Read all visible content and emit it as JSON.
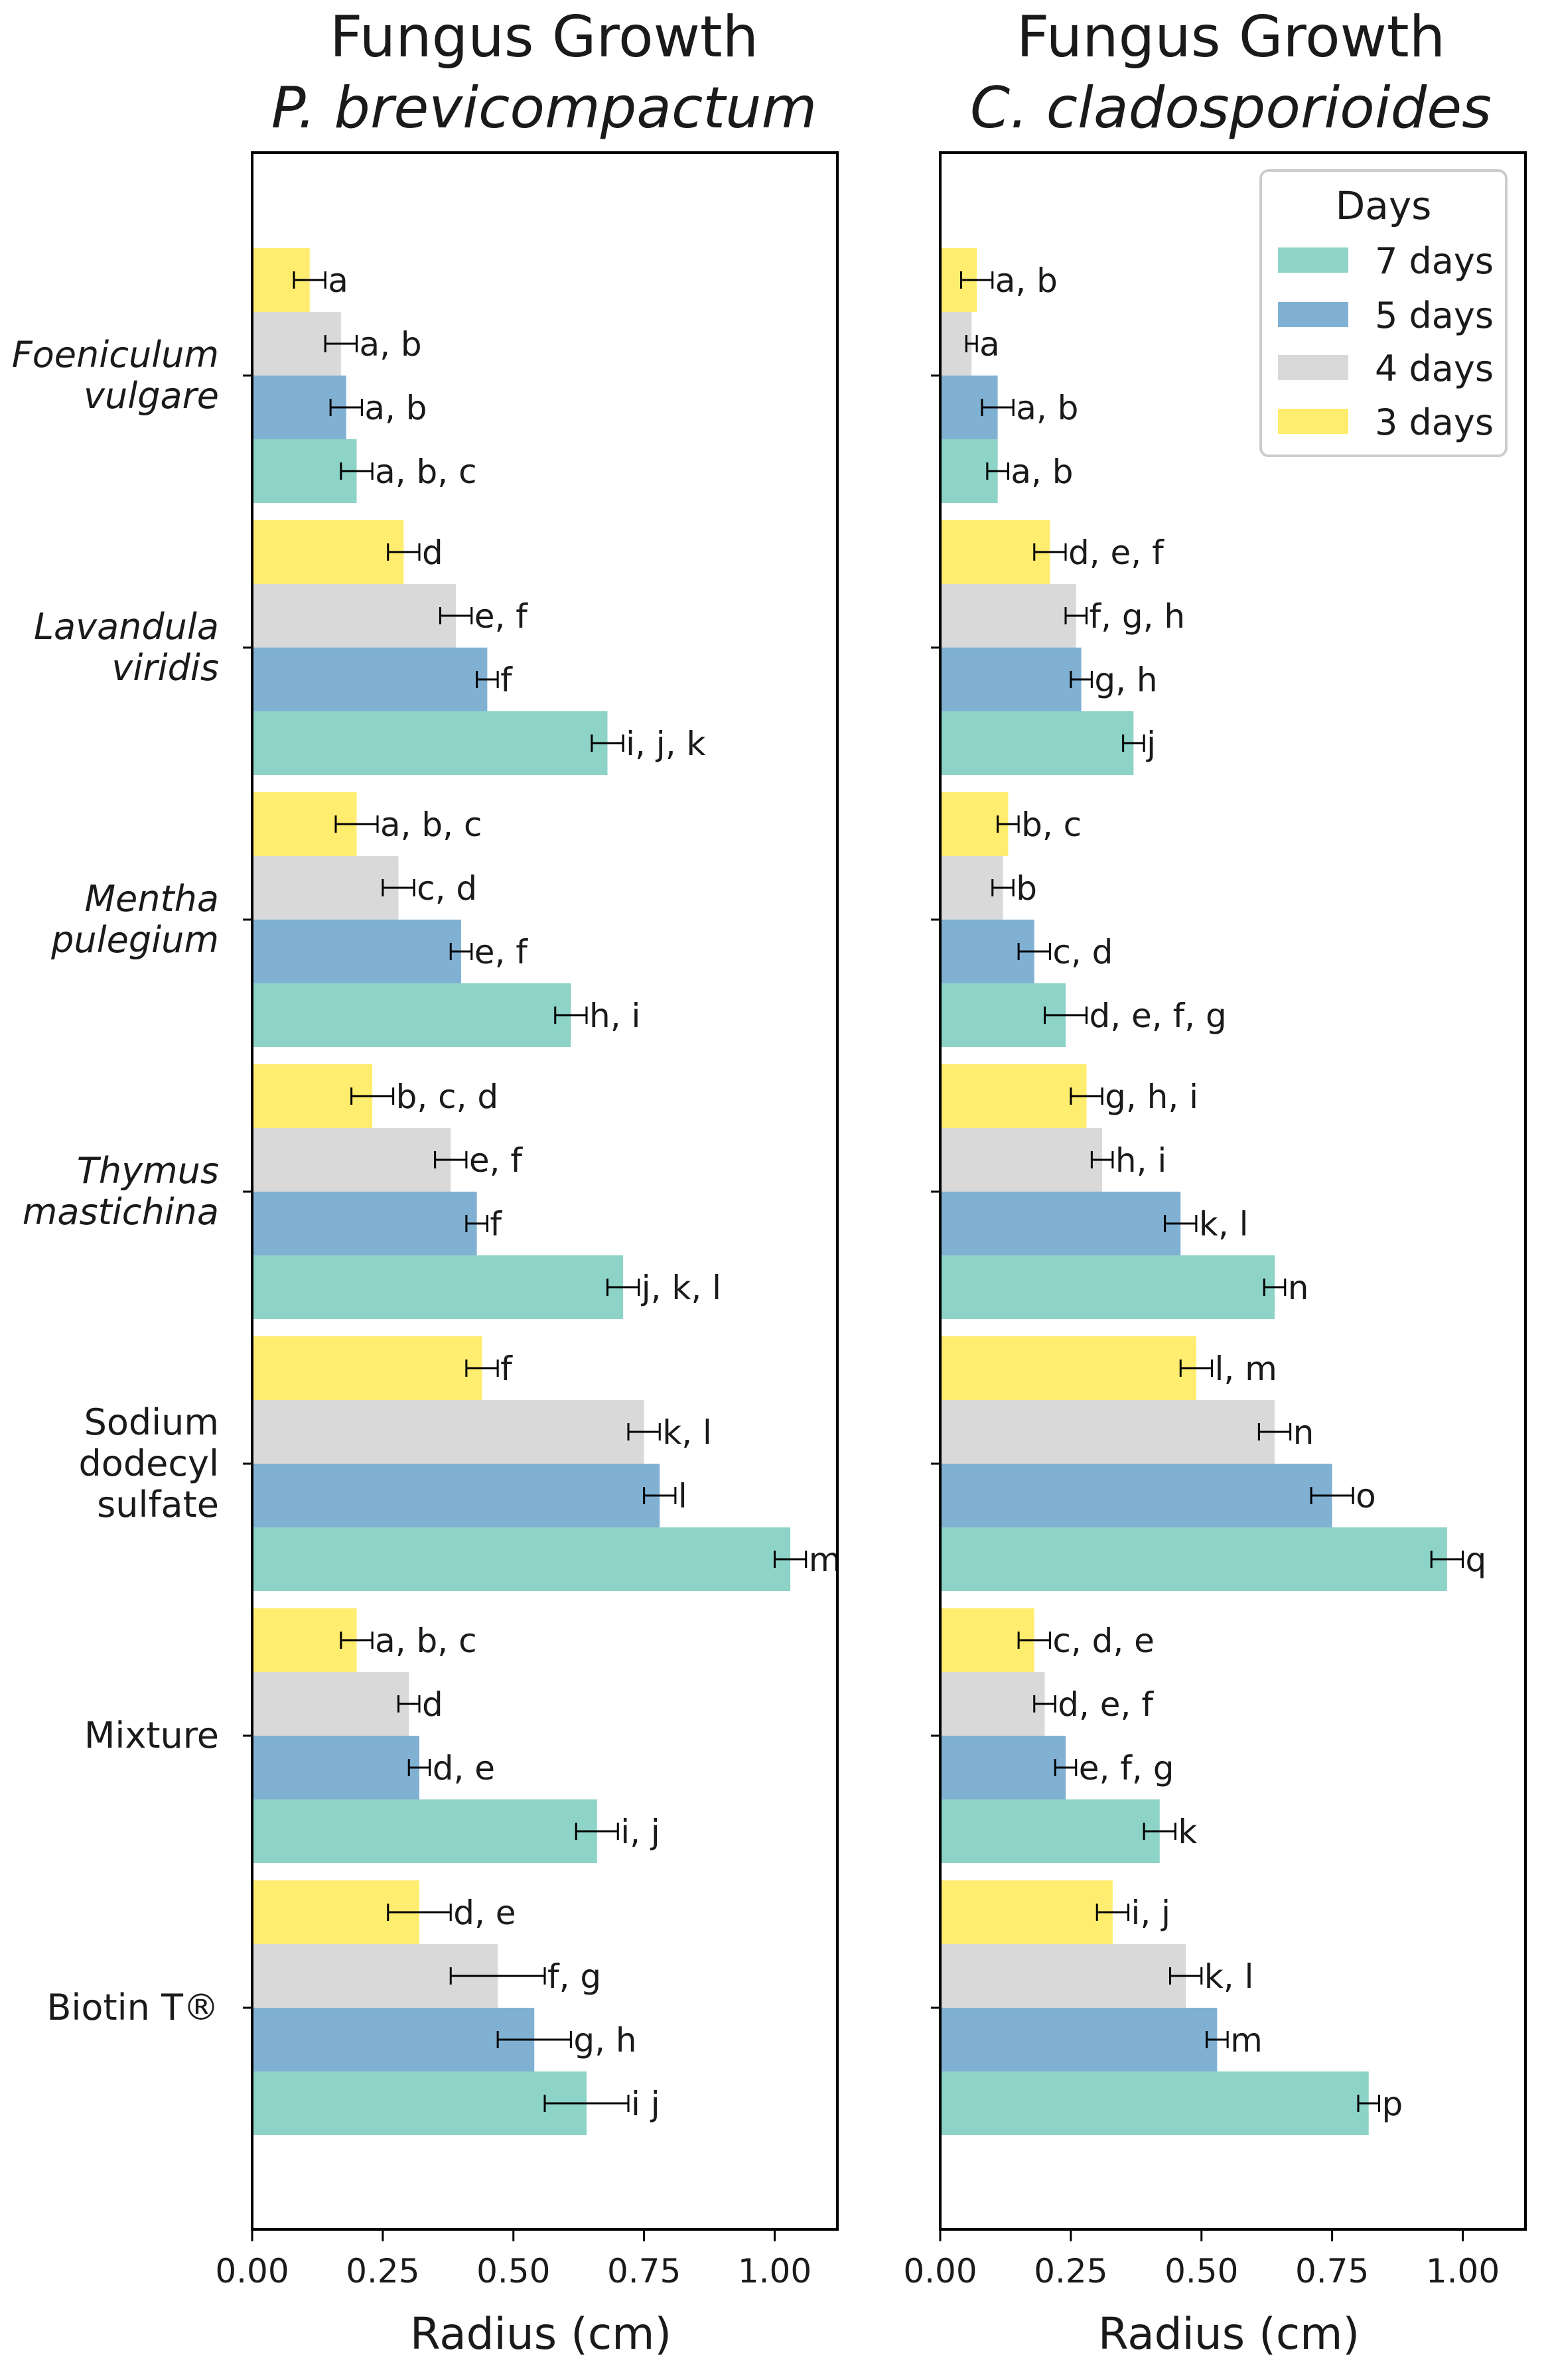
{
  "chart_data": [
    {
      "type": "bar",
      "orientation": "horizontal",
      "title": [
        "Fungus Growth",
        "P. brevicompactum"
      ],
      "xlabel": "Radius (cm)",
      "xlim": [
        0,
        1.12
      ],
      "xticks": [
        "0.00",
        "0.25",
        "0.50",
        "0.75",
        "1.00"
      ],
      "categories": [
        [
          "Foeniculum",
          "vulgare"
        ],
        [
          "Lavandula",
          "viridis"
        ],
        [
          "Mentha",
          "pulegium"
        ],
        [
          "Thymus",
          "mastichina"
        ],
        [
          "Sodium",
          "dodecyl",
          "sulfate"
        ],
        [
          "Mixture"
        ],
        [
          "Biotin T®"
        ]
      ],
      "italic_categories": [
        true,
        true,
        true,
        true,
        false,
        false,
        false
      ],
      "series": [
        {
          "name": "3 days",
          "values": [
            0.11,
            0.29,
            0.2,
            0.23,
            0.44,
            0.2,
            0.32
          ],
          "errors": [
            0.03,
            0.03,
            0.04,
            0.04,
            0.03,
            0.03,
            0.06
          ],
          "labels": [
            "a",
            "d",
            "a, b, c",
            "b, c, d",
            "f",
            "a, b, c",
            "d, e"
          ]
        },
        {
          "name": "4 days",
          "values": [
            0.17,
            0.39,
            0.28,
            0.38,
            0.75,
            0.3,
            0.47
          ],
          "errors": [
            0.03,
            0.03,
            0.03,
            0.03,
            0.03,
            0.02,
            0.09
          ],
          "labels": [
            "a, b",
            "e, f",
            "c, d",
            "e, f",
            "k, l",
            "d",
            "f, g"
          ]
        },
        {
          "name": "5 days",
          "values": [
            0.18,
            0.45,
            0.4,
            0.43,
            0.78,
            0.32,
            0.54
          ],
          "errors": [
            0.03,
            0.02,
            0.02,
            0.02,
            0.03,
            0.02,
            0.07
          ],
          "labels": [
            "a, b",
            "f",
            "e, f",
            "f",
            "l",
            "d, e",
            "g, h"
          ]
        },
        {
          "name": "7 days",
          "values": [
            0.2,
            0.68,
            0.61,
            0.71,
            1.03,
            0.66,
            0.64
          ],
          "errors": [
            0.03,
            0.03,
            0.03,
            0.03,
            0.03,
            0.04,
            0.08
          ],
          "labels": [
            "a, b, c",
            "i, j, k",
            "h, i",
            "j, k, l",
            "m",
            "i, j",
            "i j"
          ]
        }
      ]
    },
    {
      "type": "bar",
      "orientation": "horizontal",
      "title": [
        "Fungus Growth",
        "C. cladosporioides"
      ],
      "xlabel": "Radius (cm)",
      "xlim": [
        0,
        1.12
      ],
      "xticks": [
        "0.00",
        "0.25",
        "0.50",
        "0.75",
        "1.00"
      ],
      "series": [
        {
          "name": "3 days",
          "values": [
            0.07,
            0.21,
            0.13,
            0.28,
            0.49,
            0.18,
            0.33
          ],
          "errors": [
            0.03,
            0.03,
            0.02,
            0.03,
            0.03,
            0.03,
            0.03
          ],
          "labels": [
            "a, b",
            "d, e, f",
            "b, c",
            "g, h, i",
            "l, m",
            "c, d, e",
            "i, j"
          ]
        },
        {
          "name": "4 days",
          "values": [
            0.06,
            0.26,
            0.12,
            0.31,
            0.64,
            0.2,
            0.47
          ],
          "errors": [
            0.01,
            0.02,
            0.02,
            0.02,
            0.03,
            0.02,
            0.03
          ],
          "labels": [
            "a",
            "f, g, h",
            "b",
            "h, i",
            "n",
            "d, e, f",
            "k, l"
          ]
        },
        {
          "name": "5 days",
          "values": [
            0.11,
            0.27,
            0.18,
            0.46,
            0.75,
            0.24,
            0.53
          ],
          "errors": [
            0.03,
            0.02,
            0.03,
            0.03,
            0.04,
            0.02,
            0.02
          ],
          "labels": [
            "a, b",
            "g, h",
            "c, d",
            "k, l",
            "o",
            "e, f, g",
            "m"
          ]
        },
        {
          "name": "7 days",
          "values": [
            0.11,
            0.37,
            0.24,
            0.64,
            0.97,
            0.42,
            0.82
          ],
          "errors": [
            0.02,
            0.02,
            0.04,
            0.02,
            0.03,
            0.03,
            0.02
          ],
          "labels": [
            "a, b",
            "j",
            "d, e, f, g",
            "n",
            "q",
            "k",
            "p"
          ]
        }
      ]
    }
  ],
  "legend": {
    "title": "Days",
    "position": "top-right",
    "items": [
      {
        "label": "7 days",
        "color": "#8dd3c7"
      },
      {
        "label": "5 days",
        "color": "#80b1d3"
      },
      {
        "label": "4 days",
        "color": "#d9d9d9"
      },
      {
        "label": "3 days",
        "color": "#ffed6f"
      }
    ]
  },
  "series_colors": {
    "3 days": "#ffed6f",
    "4 days": "#d9d9d9",
    "5 days": "#80b1d3",
    "7 days": "#8dd3c7"
  }
}
